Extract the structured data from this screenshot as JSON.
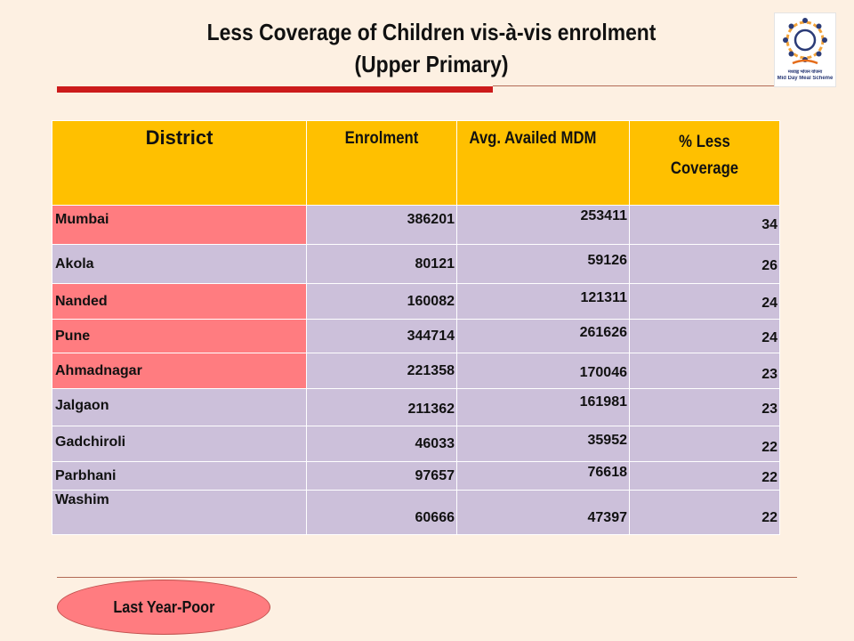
{
  "slide": {
    "title_line1": "Less Coverage of Children vis-à-vis enrolment",
    "title_line2": "(Upper Primary)",
    "logo_text_line1": "मध्याह्न भोजन योजना",
    "logo_text_line2": "Mid Day Meal Scheme",
    "oval_label": "Last Year-Poor"
  },
  "table": {
    "headers": {
      "district": "District",
      "enrolment": "Enrolment",
      "avg_availed": "Avg. Availed MDM",
      "less_line1": "% Less",
      "less_line2": "Coverage"
    },
    "rows": [
      {
        "district": "Mumbai",
        "enrolment": "386201",
        "availed": "253411",
        "less": "34",
        "highlight": true
      },
      {
        "district": "Akola",
        "enrolment": "80121",
        "availed": "59126",
        "less": "26",
        "highlight": false
      },
      {
        "district": "Nanded",
        "enrolment": "160082",
        "availed": "121311",
        "less": "24",
        "highlight": true
      },
      {
        "district": "Pune",
        "enrolment": "344714",
        "availed": "261626",
        "less": "24",
        "highlight": true
      },
      {
        "district": "Ahmadnagar",
        "enrolment": "221358",
        "availed": "170046",
        "less": "23",
        "highlight": true
      },
      {
        "district": "Jalgaon",
        "enrolment": "211362",
        "availed": "161981",
        "less": "23",
        "highlight": false
      },
      {
        "district": "Gadchiroli",
        "enrolment": "46033",
        "availed": "35952",
        "less": "22",
        "highlight": false
      },
      {
        "district": "Parbhani",
        "enrolment": "97657",
        "availed": "76618",
        "less": "22",
        "highlight": false
      },
      {
        "district": "Washim",
        "enrolment": "60666",
        "availed": "47397",
        "less": "22",
        "highlight": false
      }
    ]
  },
  "colors": {
    "header_bg": "#ffc000",
    "row_bg": "#ccc0da",
    "highlight_bg": "#ff7c80",
    "accent_bar": "#cc1b1b",
    "slide_bg": "#fdf0e2"
  }
}
